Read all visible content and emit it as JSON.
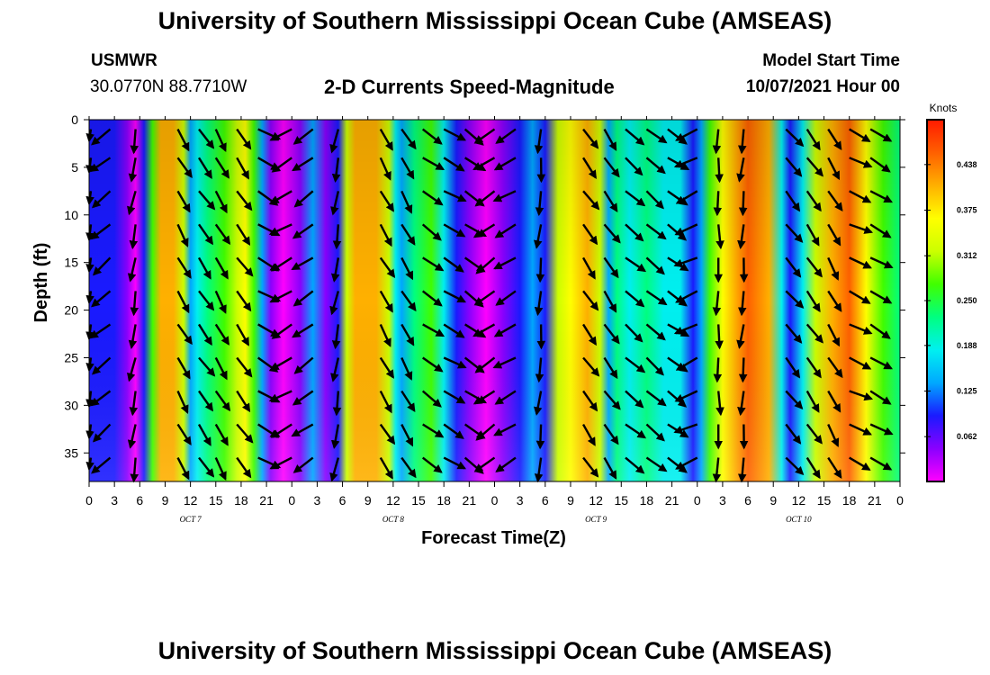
{
  "header": {
    "title": "University of Southern Mississippi Ocean Cube (AMSEAS)",
    "station": "USMWR",
    "coords": "30.0770N  88.7710W",
    "subtitle": "2-D Currents Speed-Magnitude",
    "model_label": "Model Start Time",
    "model_time": "10/07/2021 Hour 00"
  },
  "footer": {
    "title": "University of Southern Mississippi Ocean Cube (AMSEAS)"
  },
  "chart_data": {
    "type": "heatmap",
    "title": "2-D Currents Speed-Magnitude",
    "xlabel": "Forecast Time(Z)",
    "ylabel": "Depth (ft)",
    "x_tick_labels": [
      "0",
      "3",
      "6",
      "9",
      "12",
      "15",
      "18",
      "21",
      "0",
      "3",
      "6",
      "9",
      "12",
      "15",
      "18",
      "21",
      "0",
      "3",
      "6",
      "9",
      "12",
      "15",
      "18",
      "21",
      "0",
      "3",
      "6",
      "9",
      "12",
      "15",
      "18",
      "21",
      "0"
    ],
    "x_range_hours": [
      0,
      96
    ],
    "day_labels": [
      {
        "label": "OCT 7",
        "hour": 12
      },
      {
        "label": "OCT 8",
        "hour": 36
      },
      {
        "label": "OCT 9",
        "hour": 60
      },
      {
        "label": "OCT 10",
        "hour": 84
      }
    ],
    "y_tick_labels": [
      "0",
      "5",
      "10",
      "15",
      "20",
      "25",
      "30",
      "35"
    ],
    "y_range_ft": [
      0,
      38
    ],
    "colorbar": {
      "unit": "Knots",
      "range": [
        0.0,
        0.5
      ],
      "tick_labels": [
        "0.062",
        "0.125",
        "0.188",
        "0.250",
        "0.312",
        "0.375",
        "0.438"
      ],
      "colors": [
        "#ff00ff",
        "#8a00ff",
        "#1a1aff",
        "#00a8ff",
        "#00f0f0",
        "#00ff80",
        "#40ff00",
        "#ccff00",
        "#ffff00",
        "#ffb000",
        "#ff6000",
        "#ff1a00"
      ]
    },
    "speed_profile_knots": [
      {
        "hour": 0,
        "v": 0.11
      },
      {
        "hour": 1.5,
        "v": 0.09
      },
      {
        "hour": 3,
        "v": 0.08
      },
      {
        "hour": 4.5,
        "v": 0.05
      },
      {
        "hour": 5.5,
        "v": 0.02
      },
      {
        "hour": 6.5,
        "v": 0.1
      },
      {
        "hour": 7.5,
        "v": 0.28
      },
      {
        "hour": 8.5,
        "v": 0.4
      },
      {
        "hour": 10,
        "v": 0.43
      },
      {
        "hour": 11.2,
        "v": 0.34
      },
      {
        "hour": 12,
        "v": 0.12
      },
      {
        "hour": 12.8,
        "v": 0.17
      },
      {
        "hour": 14,
        "v": 0.24
      },
      {
        "hour": 16,
        "v": 0.26
      },
      {
        "hour": 17.5,
        "v": 0.32
      },
      {
        "hour": 18.5,
        "v": 0.35
      },
      {
        "hour": 19.5,
        "v": 0.25
      },
      {
        "hour": 20.5,
        "v": 0.12
      },
      {
        "hour": 21.5,
        "v": 0.04
      },
      {
        "hour": 23,
        "v": 0.02
      },
      {
        "hour": 25,
        "v": 0.06
      },
      {
        "hour": 26.5,
        "v": 0.14
      },
      {
        "hour": 28,
        "v": 0.06
      },
      {
        "hour": 29.5,
        "v": 0.1
      },
      {
        "hour": 30.5,
        "v": 0.3
      },
      {
        "hour": 31.5,
        "v": 0.41
      },
      {
        "hour": 34,
        "v": 0.4
      },
      {
        "hour": 35.5,
        "v": 0.3
      },
      {
        "hour": 36.3,
        "v": 0.17
      },
      {
        "hour": 37,
        "v": 0.15
      },
      {
        "hour": 38.5,
        "v": 0.22
      },
      {
        "hour": 40.5,
        "v": 0.28
      },
      {
        "hour": 42,
        "v": 0.2
      },
      {
        "hour": 43.5,
        "v": 0.1
      },
      {
        "hour": 45,
        "v": 0.05
      },
      {
        "hour": 47,
        "v": 0.02
      },
      {
        "hour": 49,
        "v": 0.06
      },
      {
        "hour": 51,
        "v": 0.1
      },
      {
        "hour": 52.5,
        "v": 0.12
      },
      {
        "hour": 54,
        "v": 0.1
      },
      {
        "hour": 55.5,
        "v": 0.3
      },
      {
        "hour": 57,
        "v": 0.38
      },
      {
        "hour": 59,
        "v": 0.4
      },
      {
        "hour": 60.5,
        "v": 0.33
      },
      {
        "hour": 61.5,
        "v": 0.15
      },
      {
        "hour": 62.5,
        "v": 0.22
      },
      {
        "hour": 64,
        "v": 0.2
      },
      {
        "hour": 66,
        "v": 0.23
      },
      {
        "hour": 68,
        "v": 0.2
      },
      {
        "hour": 70,
        "v": 0.16
      },
      {
        "hour": 71.5,
        "v": 0.08
      },
      {
        "hour": 72.5,
        "v": 0.12
      },
      {
        "hour": 73.5,
        "v": 0.28
      },
      {
        "hour": 75,
        "v": 0.38
      },
      {
        "hour": 78,
        "v": 0.45
      },
      {
        "hour": 80.5,
        "v": 0.4
      },
      {
        "hour": 82,
        "v": 0.2
      },
      {
        "hour": 83,
        "v": 0.1
      },
      {
        "hour": 84.5,
        "v": 0.18
      },
      {
        "hour": 86,
        "v": 0.3
      },
      {
        "hour": 88,
        "v": 0.42
      },
      {
        "hour": 90,
        "v": 0.45
      },
      {
        "hour": 92,
        "v": 0.38
      },
      {
        "hour": 94,
        "v": 0.26
      },
      {
        "hour": 96,
        "v": 0.22
      }
    ],
    "vector_columns_hours": [
      0,
      2.5,
      5.5,
      10.5,
      13,
      15,
      17.5,
      20,
      24,
      26.5,
      29.5,
      34.5,
      37,
      39.5,
      42,
      44.5,
      48,
      50.5,
      53.5,
      58.5,
      61,
      63.5,
      66,
      68.5,
      72,
      74.5,
      77.5,
      82.5,
      85,
      87.5,
      90,
      92.5
    ],
    "vector_rows_ft": [
      1,
      4,
      7.5,
      11,
      14.5,
      18,
      21.5,
      25,
      28.5,
      32,
      35.5
    ],
    "vector_dirs_deg": [
      -145,
      -140,
      -100,
      -60,
      -55,
      -60,
      -55,
      -30,
      210,
      -145,
      -100,
      -60,
      -60,
      -35,
      -30,
      -35,
      215,
      210,
      -95,
      -55,
      -55,
      -40,
      -40,
      -35,
      205,
      -90,
      -95,
      -50,
      -55,
      -60,
      -25,
      -30
    ]
  }
}
